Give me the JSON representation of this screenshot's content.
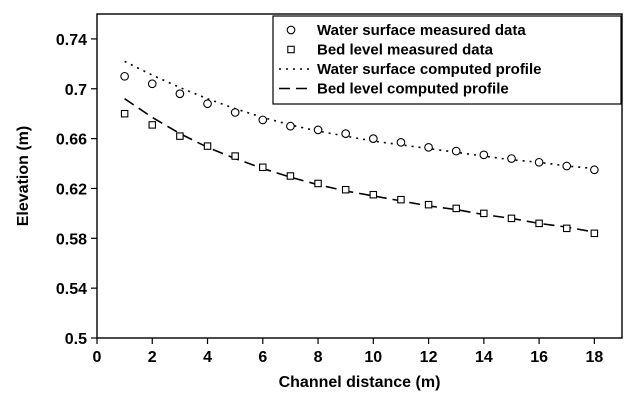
{
  "chart_data": {
    "type": "scatter",
    "title": "",
    "xlabel": "Channel distance (m)",
    "ylabel": "Elevation (m)",
    "xlim": [
      0,
      19
    ],
    "ylim": [
      0.5,
      0.76
    ],
    "x_ticks": [
      0,
      2,
      4,
      6,
      8,
      10,
      12,
      14,
      16,
      18
    ],
    "x_tick_labels": [
      "0",
      "2",
      "4",
      "6",
      "8",
      "10",
      "12",
      "14",
      "16",
      "18"
    ],
    "y_ticks": [
      0.5,
      0.54,
      0.58,
      0.62,
      0.66,
      0.7,
      0.74
    ],
    "y_tick_labels": [
      "0.5",
      "0.54",
      "0.58",
      "0.62",
      "0.66",
      "0.7",
      "0.74"
    ],
    "grid": false,
    "legend_position": "top-right",
    "series": [
      {
        "name": "Water surface measured data",
        "style": "circle-marker",
        "x": [
          1,
          2,
          3,
          4,
          5,
          6,
          7,
          8,
          9,
          10,
          11,
          12,
          13,
          14,
          15,
          16,
          17,
          18
        ],
        "y": [
          0.71,
          0.704,
          0.696,
          0.688,
          0.681,
          0.675,
          0.67,
          0.667,
          0.664,
          0.66,
          0.657,
          0.653,
          0.65,
          0.647,
          0.644,
          0.641,
          0.638,
          0.635
        ]
      },
      {
        "name": "Bed level measured data",
        "style": "square-marker",
        "x": [
          1,
          2,
          3,
          4,
          5,
          6,
          7,
          8,
          9,
          10,
          11,
          12,
          13,
          14,
          15,
          16,
          17,
          18
        ],
        "y": [
          0.68,
          0.671,
          0.662,
          0.654,
          0.646,
          0.637,
          0.63,
          0.624,
          0.619,
          0.615,
          0.611,
          0.607,
          0.604,
          0.6,
          0.596,
          0.592,
          0.588,
          0.584
        ]
      },
      {
        "name": "Water surface computed profile",
        "style": "dotted-line",
        "x": [
          1,
          2,
          3,
          4,
          5,
          6,
          7,
          8,
          9,
          10,
          11,
          12,
          13,
          14,
          15,
          16,
          17,
          18
        ],
        "y": [
          0.722,
          0.711,
          0.701,
          0.692,
          0.684,
          0.677,
          0.671,
          0.666,
          0.662,
          0.658,
          0.655,
          0.652,
          0.649,
          0.646,
          0.643,
          0.641,
          0.638,
          0.636
        ]
      },
      {
        "name": "Bed level computed profile",
        "style": "dashed-line",
        "x": [
          1,
          2,
          3,
          4,
          5,
          6,
          7,
          8,
          9,
          10,
          11,
          12,
          13,
          14,
          15,
          16,
          17,
          18
        ],
        "y": [
          0.692,
          0.677,
          0.664,
          0.653,
          0.644,
          0.636,
          0.629,
          0.623,
          0.618,
          0.614,
          0.61,
          0.606,
          0.603,
          0.599,
          0.596,
          0.592,
          0.589,
          0.585
        ]
      }
    ]
  }
}
